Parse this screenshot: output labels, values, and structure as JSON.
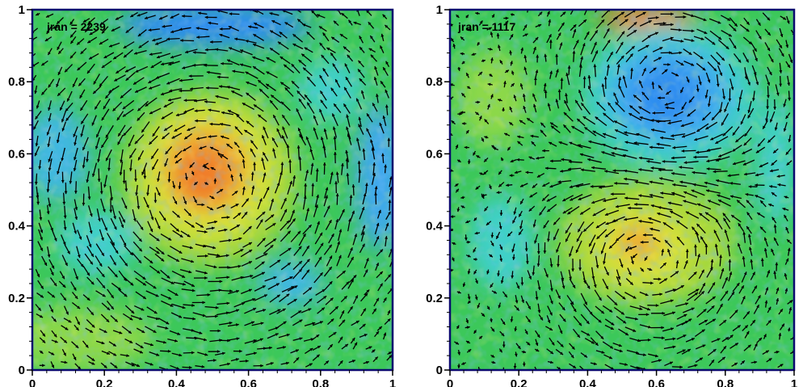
{
  "chart_data": [
    {
      "type": "heatmap",
      "title": "",
      "xlabel": "",
      "ylabel": "",
      "xlim": [
        0,
        1
      ],
      "ylim": [
        0,
        1
      ],
      "x_ticks": [
        {
          "value": 0,
          "label": "0"
        },
        {
          "value": 0.2,
          "label": "0.2"
        },
        {
          "value": 0.4,
          "label": "0.4"
        },
        {
          "value": 0.6,
          "label": "0.6"
        },
        {
          "value": 0.8,
          "label": "0.8"
        },
        {
          "value": 1,
          "label": "1"
        }
      ],
      "y_ticks": [
        {
          "value": 0,
          "label": "0"
        },
        {
          "value": 0.2,
          "label": "0.2"
        },
        {
          "value": 0.4,
          "label": "0.4"
        },
        {
          "value": 0.6,
          "label": "0.6"
        },
        {
          "value": 0.8,
          "label": "0.8"
        },
        {
          "value": 1,
          "label": "1"
        }
      ],
      "annotation": "jran = 2239",
      "overlay": "vector field (arrows)",
      "vortices": [
        {
          "x": 0.49,
          "y": 0.53,
          "intensity": "high",
          "color": "red/orange",
          "rotation": "counterclockwise"
        }
      ],
      "grid": false
    },
    {
      "type": "heatmap",
      "title": "",
      "xlabel": "",
      "ylabel": "",
      "xlim": [
        0,
        1
      ],
      "ylim": [
        0,
        1
      ],
      "x_ticks": [
        {
          "value": 0,
          "label": "0"
        },
        {
          "value": 0.2,
          "label": "0.2"
        },
        {
          "value": 0.4,
          "label": "0.4"
        },
        {
          "value": 0.6,
          "label": "0.6"
        },
        {
          "value": 0.8,
          "label": "0.8"
        },
        {
          "value": 1,
          "label": "1"
        }
      ],
      "y_ticks": [
        {
          "value": 0,
          "label": "0"
        },
        {
          "value": 0.2,
          "label": "0.2"
        },
        {
          "value": 0.4,
          "label": "0.4"
        },
        {
          "value": 0.6,
          "label": "0.6"
        },
        {
          "value": 0.8,
          "label": "0.8"
        },
        {
          "value": 1,
          "label": "1"
        }
      ],
      "annotation": "jran = 1117",
      "overlay": "vector field (arrows)",
      "vortices": [
        {
          "x": 0.63,
          "y": 0.75,
          "intensity": "low",
          "color": "blue",
          "rotation": "clockwise"
        },
        {
          "x": 0.58,
          "y": 0.35,
          "intensity": "medium",
          "color": "yellow/orange",
          "rotation": "counterclockwise"
        }
      ],
      "grid": false
    }
  ],
  "colors": {
    "frame": "#0a0a6e",
    "low": "#2d8cf0",
    "mid_low": "#3fd0c8",
    "mid": "#3cc85a",
    "mid_high": "#d8e23a",
    "high": "#f07a2a",
    "arrow": "#000000"
  }
}
